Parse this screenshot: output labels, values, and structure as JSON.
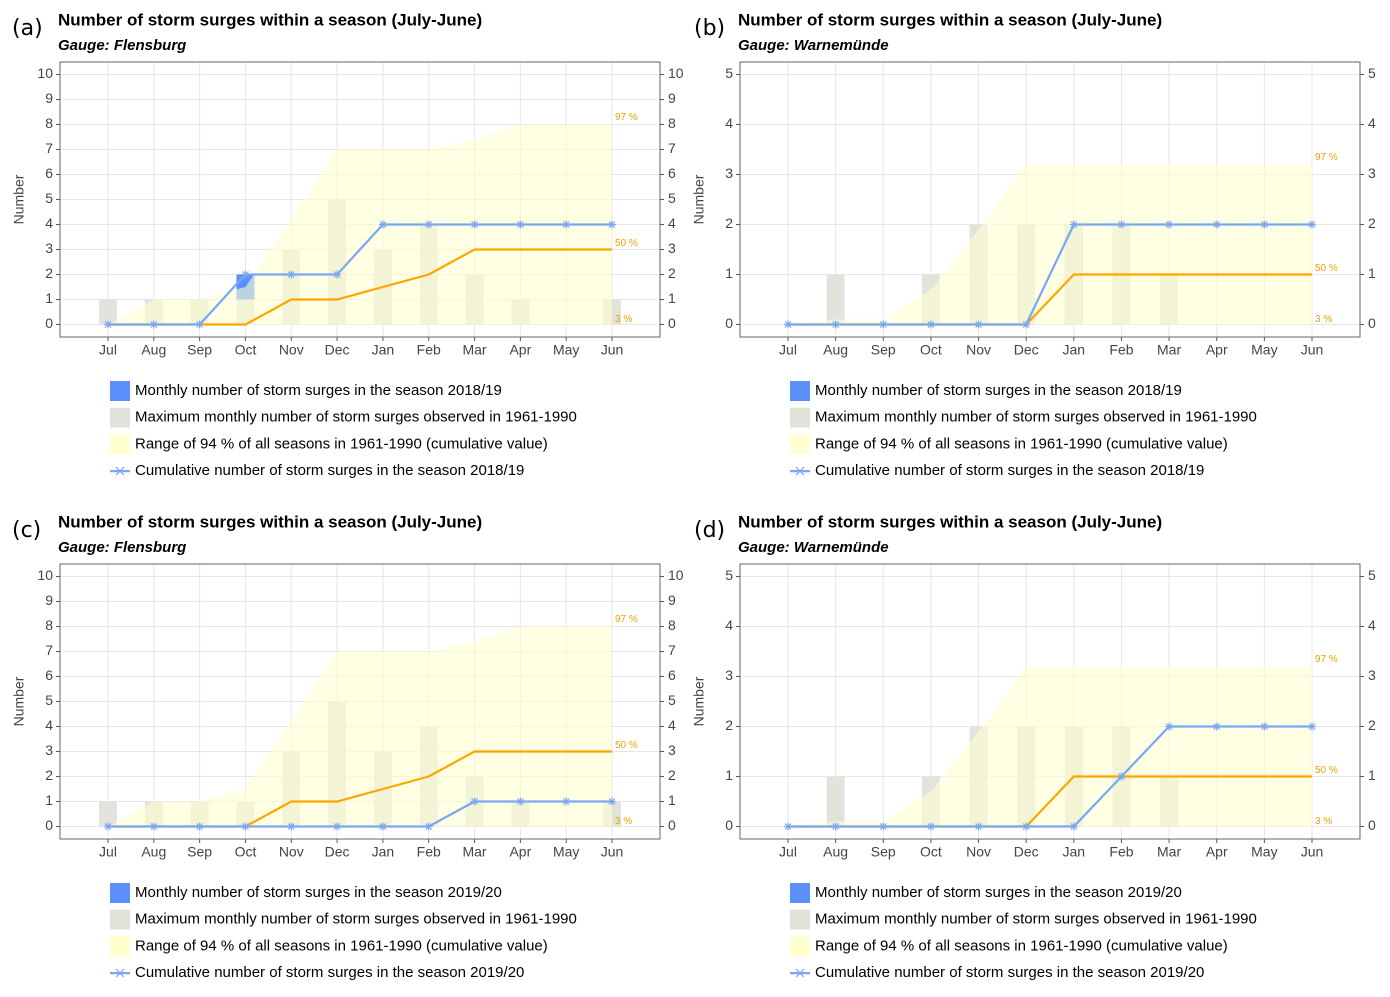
{
  "chart_data": [
    {
      "type": "bar_line",
      "panel_label": "(a)",
      "title": "Number of storm surges within a season (July-June)",
      "subtitle": "Gauge: Flensburg",
      "ylabel": "Number",
      "categories": [
        "Jul",
        "Aug",
        "Sep",
        "Oct",
        "Nov",
        "Dec",
        "Jan",
        "Feb",
        "Mar",
        "Apr",
        "May",
        "Jun"
      ],
      "ylim": [
        -0.5,
        10.5
      ],
      "yticks": [
        0,
        1,
        2,
        3,
        4,
        5,
        6,
        7,
        8,
        9,
        10
      ],
      "grid": true,
      "series": [
        {
          "type": "bar",
          "name": "Monthly number of storm surges in the season 2018/19",
          "color": "#5b8ff9",
          "values": [
            0,
            0,
            0,
            2,
            0,
            0,
            2,
            0,
            0,
            0,
            0,
            0
          ]
        },
        {
          "type": "bar",
          "name": "Maximum monthly number of storm surges observed in 1961-1990",
          "color": "#e2e4dc",
          "values": [
            1,
            1,
            1,
            1,
            3,
            5,
            3,
            4,
            2,
            1,
            0,
            1
          ]
        },
        {
          "type": "band",
          "name": "Range of 94 % of all seasons in 1961-1990 (cumulative value)",
          "color": "#ffffd0",
          "lower": [
            0,
            0,
            0,
            0,
            0,
            0,
            0,
            0,
            0,
            0,
            0,
            0
          ],
          "upper": [
            0,
            1,
            1,
            1.5,
            4.2,
            7,
            7,
            7,
            7.4,
            8,
            8,
            8
          ],
          "lower_label": "3 %",
          "upper_label": "97 %"
        },
        {
          "type": "line",
          "name": "Cumulative number of storm surges in the season 2018/19",
          "color": "#7aa6f5",
          "values": [
            0,
            0,
            0,
            2,
            2,
            2,
            4,
            4,
            4,
            4,
            4,
            4
          ]
        }
      ],
      "median": {
        "color": "#ffa500",
        "values": [
          0,
          0,
          0,
          0,
          1,
          1,
          1.5,
          2,
          3,
          3,
          3,
          3
        ],
        "label": "50 %"
      }
    },
    {
      "type": "bar_line",
      "panel_label": "(b)",
      "title": "Number of storm surges within a season (July-June)",
      "subtitle": "Gauge: Warnemünde",
      "ylabel": "Number",
      "categories": [
        "Jul",
        "Aug",
        "Sep",
        "Oct",
        "Nov",
        "Dec",
        "Jan",
        "Feb",
        "Mar",
        "Apr",
        "May",
        "Jun"
      ],
      "ylim": [
        -0.25,
        5.25
      ],
      "yticks": [
        0,
        1,
        2,
        3,
        4,
        5
      ],
      "grid": true,
      "series": [
        {
          "type": "bar",
          "name": "Monthly number of storm surges in the season 2018/19",
          "color": "#5b8ff9",
          "values": [
            0,
            0,
            0,
            0,
            0,
            0,
            2,
            0,
            0,
            0,
            0,
            0
          ]
        },
        {
          "type": "bar",
          "name": "Maximum monthly number of storm surges observed in 1961-1990",
          "color": "#e2e4dc",
          "values": [
            0,
            1,
            0,
            1,
            2,
            2,
            2,
            2,
            1,
            0,
            0,
            0
          ]
        },
        {
          "type": "band",
          "name": "Range of 94 % of all seasons in 1961-1990 (cumulative value)",
          "color": "#ffffd0",
          "lower": [
            0,
            0,
            0,
            0,
            0,
            0,
            0,
            0,
            0,
            0,
            0,
            0
          ],
          "upper": [
            0,
            0.1,
            0.1,
            0.7,
            1.9,
            3.2,
            3.2,
            3.2,
            3.2,
            3.2,
            3.2,
            3.2
          ],
          "lower_label": "3 %",
          "upper_label": "97 %"
        },
        {
          "type": "line",
          "name": "Cumulative number of storm surges in the season 2018/19",
          "color": "#7aa6f5",
          "values": [
            0,
            0,
            0,
            0,
            0,
            0,
            2,
            2,
            2,
            2,
            2,
            2
          ]
        }
      ],
      "median": {
        "color": "#ffa500",
        "values": [
          0,
          0,
          0,
          0,
          0,
          0,
          1,
          1,
          1,
          1,
          1,
          1
        ],
        "label": "50 %"
      }
    },
    {
      "type": "bar_line",
      "panel_label": "(c)",
      "title": "Number of storm surges within a season (July-June)",
      "subtitle": "Gauge: Flensburg",
      "ylabel": "Number",
      "categories": [
        "Jul",
        "Aug",
        "Sep",
        "Oct",
        "Nov",
        "Dec",
        "Jan",
        "Feb",
        "Mar",
        "Apr",
        "May",
        "Jun"
      ],
      "ylim": [
        -0.5,
        10.5
      ],
      "yticks": [
        0,
        1,
        2,
        3,
        4,
        5,
        6,
        7,
        8,
        9,
        10
      ],
      "grid": true,
      "series": [
        {
          "type": "bar",
          "name": "Monthly number of storm surges in the season 2019/20",
          "color": "#5b8ff9",
          "values": [
            0,
            0,
            0,
            0,
            0,
            0,
            0,
            0,
            1,
            0,
            0,
            0
          ]
        },
        {
          "type": "bar",
          "name": "Maximum monthly number of storm surges observed in 1961-1990",
          "color": "#e2e4dc",
          "values": [
            1,
            1,
            1,
            1,
            3,
            5,
            3,
            4,
            2,
            1,
            0,
            1
          ]
        },
        {
          "type": "band",
          "name": "Range of 94 % of all seasons in 1961-1990 (cumulative value)",
          "color": "#ffffd0",
          "lower": [
            0,
            0,
            0,
            0,
            0,
            0,
            0,
            0,
            0,
            0,
            0,
            0
          ],
          "upper": [
            0,
            1,
            1,
            1.5,
            4.2,
            7,
            7,
            7,
            7.4,
            8,
            8,
            8
          ],
          "lower_label": "3 %",
          "upper_label": "97 %"
        },
        {
          "type": "line",
          "name": "Cumulative number of storm surges in the season 2019/20",
          "color": "#7aa6f5",
          "values": [
            0,
            0,
            0,
            0,
            0,
            0,
            0,
            0,
            1,
            1,
            1,
            1
          ]
        }
      ],
      "median": {
        "color": "#ffa500",
        "values": [
          0,
          0,
          0,
          0,
          1,
          1,
          1.5,
          2,
          3,
          3,
          3,
          3
        ],
        "label": "50 %"
      }
    },
    {
      "type": "bar_line",
      "panel_label": "(d)",
      "title": "Number of storm surges within a season (July-June)",
      "subtitle": "Gauge: Warnemünde",
      "ylabel": "Number",
      "categories": [
        "Jul",
        "Aug",
        "Sep",
        "Oct",
        "Nov",
        "Dec",
        "Jan",
        "Feb",
        "Mar",
        "Apr",
        "May",
        "Jun"
      ],
      "ylim": [
        -0.25,
        5.25
      ],
      "yticks": [
        0,
        1,
        2,
        3,
        4,
        5
      ],
      "grid": true,
      "series": [
        {
          "type": "bar",
          "name": "Monthly number of storm surges in the season 2019/20",
          "color": "#5b8ff9",
          "values": [
            0,
            0,
            0,
            0,
            0,
            0,
            0,
            1,
            1,
            0,
            0,
            0
          ]
        },
        {
          "type": "bar",
          "name": "Maximum monthly number of storm surges observed in 1961-1990",
          "color": "#e2e4dc",
          "values": [
            0,
            1,
            0,
            1,
            2,
            2,
            2,
            2,
            1,
            0,
            0,
            0
          ]
        },
        {
          "type": "band",
          "name": "Range of 94 % of all seasons in 1961-1990 (cumulative value)",
          "color": "#ffffd0",
          "lower": [
            0,
            0,
            0,
            0,
            0,
            0,
            0,
            0,
            0,
            0,
            0,
            0
          ],
          "upper": [
            0,
            0.1,
            0.1,
            0.7,
            1.9,
            3.2,
            3.2,
            3.2,
            3.2,
            3.2,
            3.2,
            3.2
          ],
          "lower_label": "3 %",
          "upper_label": "97 %"
        },
        {
          "type": "line",
          "name": "Cumulative number of storm surges in the season 2019/20",
          "color": "#7aa6f5",
          "values": [
            0,
            0,
            0,
            0,
            0,
            0,
            0,
            1,
            2,
            2,
            2,
            2
          ]
        }
      ],
      "median": {
        "color": "#ffa500",
        "values": [
          0,
          0,
          0,
          0,
          0,
          0,
          1,
          1,
          1,
          1,
          1,
          1
        ],
        "label": "50 %"
      }
    }
  ]
}
